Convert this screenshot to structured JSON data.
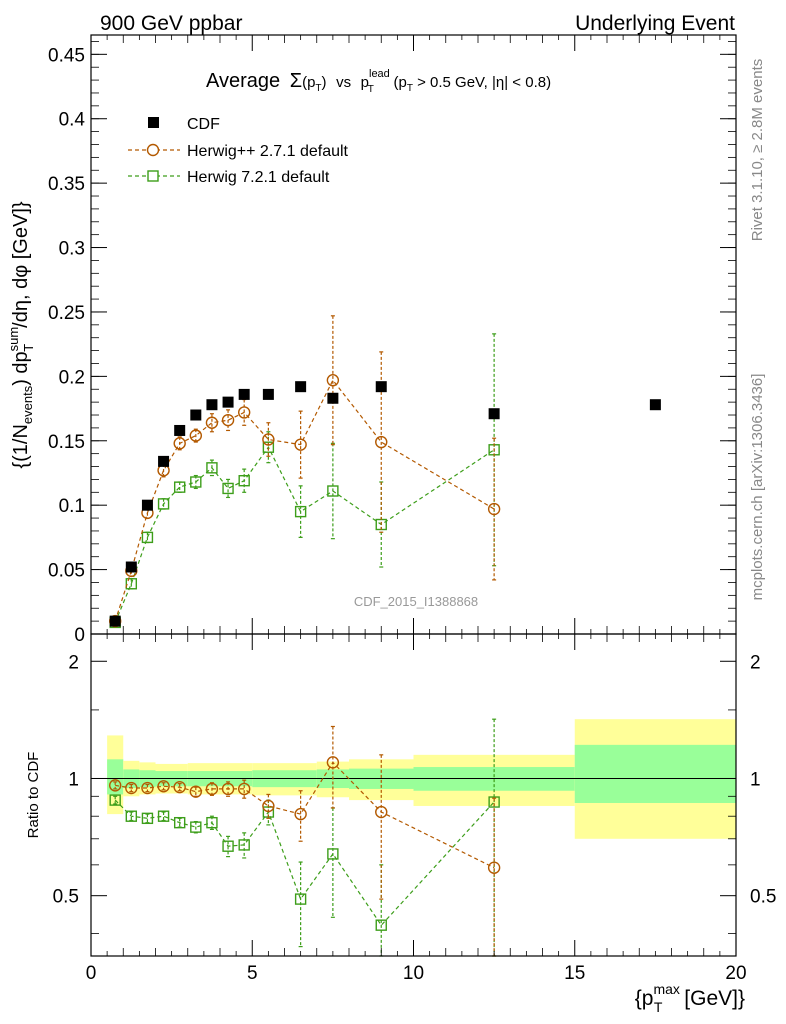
{
  "header": {
    "left": "900 GeV ppbar",
    "right": "Underlying Event"
  },
  "side_labels": {
    "rivet": "Rivet 3.1.10, ≥ 2.8M events",
    "mcplots": "mcplots.cern.ch [arXiv:1306.3436]"
  },
  "watermark": "CDF_2015_I1388868",
  "colors": {
    "cdf": "#000000",
    "herwigpp": "#b35900",
    "herwig7": "#3d9e1a",
    "band_inner": "#99ff99",
    "band_outer": "#ffff99"
  },
  "chart_data": [
    {
      "type": "scatter",
      "title": "Average Σ(pT) vs pT lead (pT > 0.5 GeV, |η| < 0.8)",
      "title_parts": {
        "average": "Average",
        "sigma": "Σ",
        "pt_open": "(p",
        "pt_sub": "T",
        "pt_close": ")",
        "vs": "vs",
        "p": "p",
        "lead_sup": "lead",
        "lead_sub": "T",
        "cut_open": "(p",
        "cut_sub": "T",
        "cut_rest": " > 0.5 GeV, |η| < 0.8)"
      },
      "ylabel": "{(1/N_events) dp_T^sum/dη, dφ [GeV]}",
      "ylabel_parts": {
        "a": "{(1/N",
        "a_sub": "events",
        "b": ") dp",
        "b_sup": "sum",
        "b_sub": "T",
        "c": "/dη, dφ [GeV]}"
      },
      "xlim": [
        0,
        20
      ],
      "ylim": [
        0,
        0.465
      ],
      "yticks": [
        "0",
        "0.05",
        "0.1",
        "0.15",
        "0.2",
        "0.25",
        "0.3",
        "0.35",
        "0.4",
        "0.45"
      ],
      "legend_position": "top-left",
      "series": [
        {
          "name": "CDF",
          "marker": "filled-square",
          "points": [
            {
              "x": 0.75,
              "y": 0.01
            },
            {
              "x": 1.25,
              "y": 0.052
            },
            {
              "x": 1.75,
              "y": 0.1
            },
            {
              "x": 2.25,
              "y": 0.134
            },
            {
              "x": 2.75,
              "y": 0.158
            },
            {
              "x": 3.25,
              "y": 0.17
            },
            {
              "x": 3.75,
              "y": 0.178
            },
            {
              "x": 4.25,
              "y": 0.18
            },
            {
              "x": 4.75,
              "y": 0.186
            },
            {
              "x": 5.5,
              "y": 0.186
            },
            {
              "x": 6.5,
              "y": 0.192
            },
            {
              "x": 7.5,
              "y": 0.183
            },
            {
              "x": 9.0,
              "y": 0.192
            },
            {
              "x": 12.5,
              "y": 0.171
            },
            {
              "x": 17.5,
              "y": 0.178
            }
          ]
        },
        {
          "name": "Herwig++ 2.7.1 default",
          "marker": "open-circle",
          "points": [
            {
              "x": 0.75,
              "y": 0.01,
              "err": 0.003
            },
            {
              "x": 1.25,
              "y": 0.049,
              "err": 0.004
            },
            {
              "x": 1.75,
              "y": 0.094,
              "err": 0.004
            },
            {
              "x": 2.25,
              "y": 0.127,
              "err": 0.005
            },
            {
              "x": 2.75,
              "y": 0.148,
              "err": 0.005
            },
            {
              "x": 3.25,
              "y": 0.154,
              "err": 0.005
            },
            {
              "x": 3.75,
              "y": 0.164,
              "err": 0.007
            },
            {
              "x": 4.25,
              "y": 0.166,
              "err": 0.008
            },
            {
              "x": 4.75,
              "y": 0.172,
              "err": 0.01
            },
            {
              "x": 5.5,
              "y": 0.151,
              "err": 0.013
            },
            {
              "x": 6.5,
              "y": 0.147,
              "err": 0.026
            },
            {
              "x": 7.5,
              "y": 0.197,
              "err": 0.05
            },
            {
              "x": 9.0,
              "y": 0.149,
              "err": 0.07
            },
            {
              "x": 12.5,
              "y": 0.097,
              "err": 0.055
            }
          ]
        },
        {
          "name": "Herwig 7.2.1 default",
          "marker": "open-square",
          "points": [
            {
              "x": 0.75,
              "y": 0.009,
              "err": 0.002
            },
            {
              "x": 1.25,
              "y": 0.039,
              "err": 0.004
            },
            {
              "x": 1.75,
              "y": 0.075,
              "err": 0.004
            },
            {
              "x": 2.25,
              "y": 0.101,
              "err": 0.004
            },
            {
              "x": 2.75,
              "y": 0.114,
              "err": 0.004
            },
            {
              "x": 3.25,
              "y": 0.118,
              "err": 0.005
            },
            {
              "x": 3.75,
              "y": 0.129,
              "err": 0.006
            },
            {
              "x": 4.25,
              "y": 0.113,
              "err": 0.007
            },
            {
              "x": 4.75,
              "y": 0.119,
              "err": 0.009
            },
            {
              "x": 5.5,
              "y": 0.145,
              "err": 0.012
            },
            {
              "x": 6.5,
              "y": 0.095,
              "err": 0.02
            },
            {
              "x": 7.5,
              "y": 0.111,
              "err": 0.037
            },
            {
              "x": 9.0,
              "y": 0.085,
              "err": 0.033
            },
            {
              "x": 12.5,
              "y": 0.143,
              "err": 0.09
            }
          ]
        }
      ]
    },
    {
      "type": "scatter",
      "ylabel": "Ratio to CDF",
      "xlabel": "{p_T^max [GeV]}",
      "xlabel_parts": {
        "a": "{p",
        "sup": "max",
        "sub": "T",
        "b": " [GeV]}"
      },
      "xlim": [
        0,
        20
      ],
      "ylim": [
        0.35,
        2.35
      ],
      "yscale": "log",
      "xticks": [
        "0",
        "5",
        "10",
        "15",
        "20"
      ],
      "yticks": [
        "0.5",
        "1",
        "2"
      ],
      "bands": [
        {
          "x0": 0.5,
          "x1": 1.0,
          "inner": [
            0.91,
            1.12
          ],
          "outer": [
            0.81,
            1.29
          ]
        },
        {
          "x0": 1.0,
          "x1": 1.5,
          "inner": [
            0.945,
            1.055
          ],
          "outer": [
            0.9,
            1.11
          ]
        },
        {
          "x0": 1.5,
          "x1": 2.0,
          "inner": [
            0.95,
            1.05
          ],
          "outer": [
            0.91,
            1.1
          ]
        },
        {
          "x0": 2.0,
          "x1": 3.0,
          "inner": [
            0.955,
            1.045
          ],
          "outer": [
            0.915,
            1.09
          ]
        },
        {
          "x0": 3.0,
          "x1": 5.0,
          "inner": [
            0.955,
            1.045
          ],
          "outer": [
            0.91,
            1.095
          ]
        },
        {
          "x0": 5.0,
          "x1": 7.0,
          "inner": [
            0.95,
            1.05
          ],
          "outer": [
            0.905,
            1.095
          ]
        },
        {
          "x0": 7.0,
          "x1": 8.0,
          "inner": [
            0.945,
            1.055
          ],
          "outer": [
            0.895,
            1.105
          ]
        },
        {
          "x0": 8.0,
          "x1": 10.0,
          "inner": [
            0.94,
            1.06
          ],
          "outer": [
            0.88,
            1.12
          ]
        },
        {
          "x0": 10.0,
          "x1": 15.0,
          "inner": [
            0.93,
            1.07
          ],
          "outer": [
            0.85,
            1.15
          ]
        },
        {
          "x0": 15.0,
          "x1": 20.0,
          "inner": [
            0.865,
            1.22
          ],
          "outer": [
            0.7,
            1.42
          ]
        }
      ],
      "series": [
        {
          "name": "Herwig++ 2.7.1 default",
          "marker": "open-circle",
          "points": [
            {
              "x": 0.75,
              "y": 0.96,
              "err": 0.02
            },
            {
              "x": 1.25,
              "y": 0.945,
              "err": 0.02
            },
            {
              "x": 1.75,
              "y": 0.945,
              "err": 0.02
            },
            {
              "x": 2.25,
              "y": 0.955,
              "err": 0.02
            },
            {
              "x": 2.75,
              "y": 0.95,
              "err": 0.02
            },
            {
              "x": 3.25,
              "y": 0.925,
              "err": 0.025
            },
            {
              "x": 3.75,
              "y": 0.94,
              "err": 0.035
            },
            {
              "x": 4.25,
              "y": 0.94,
              "err": 0.04
            },
            {
              "x": 4.75,
              "y": 0.94,
              "err": 0.05
            },
            {
              "x": 5.5,
              "y": 0.85,
              "err": 0.06
            },
            {
              "x": 6.5,
              "y": 0.81,
              "err": 0.12
            },
            {
              "x": 7.5,
              "y": 1.1,
              "err": 0.26
            },
            {
              "x": 9.0,
              "y": 0.82,
              "err": 0.33
            },
            {
              "x": 12.5,
              "y": 0.59,
              "err": 0.3
            }
          ]
        },
        {
          "name": "Herwig 7.2.1 default",
          "marker": "open-square",
          "points": [
            {
              "x": 0.75,
              "y": 0.88,
              "err": 0.02
            },
            {
              "x": 1.25,
              "y": 0.8,
              "err": 0.02
            },
            {
              "x": 1.75,
              "y": 0.79,
              "err": 0.02
            },
            {
              "x": 2.25,
              "y": 0.8,
              "err": 0.02
            },
            {
              "x": 2.75,
              "y": 0.77,
              "err": 0.02
            },
            {
              "x": 3.25,
              "y": 0.75,
              "err": 0.025
            },
            {
              "x": 3.75,
              "y": 0.77,
              "err": 0.03
            },
            {
              "x": 4.25,
              "y": 0.67,
              "err": 0.04
            },
            {
              "x": 4.75,
              "y": 0.675,
              "err": 0.05
            },
            {
              "x": 5.5,
              "y": 0.82,
              "err": 0.06
            },
            {
              "x": 6.5,
              "y": 0.49,
              "err": 0.12
            },
            {
              "x": 7.5,
              "y": 0.64,
              "err": 0.2
            },
            {
              "x": 9.0,
              "y": 0.42,
              "err": 0.18
            },
            {
              "x": 12.5,
              "y": 0.87,
              "err": 0.55
            }
          ]
        }
      ]
    }
  ]
}
